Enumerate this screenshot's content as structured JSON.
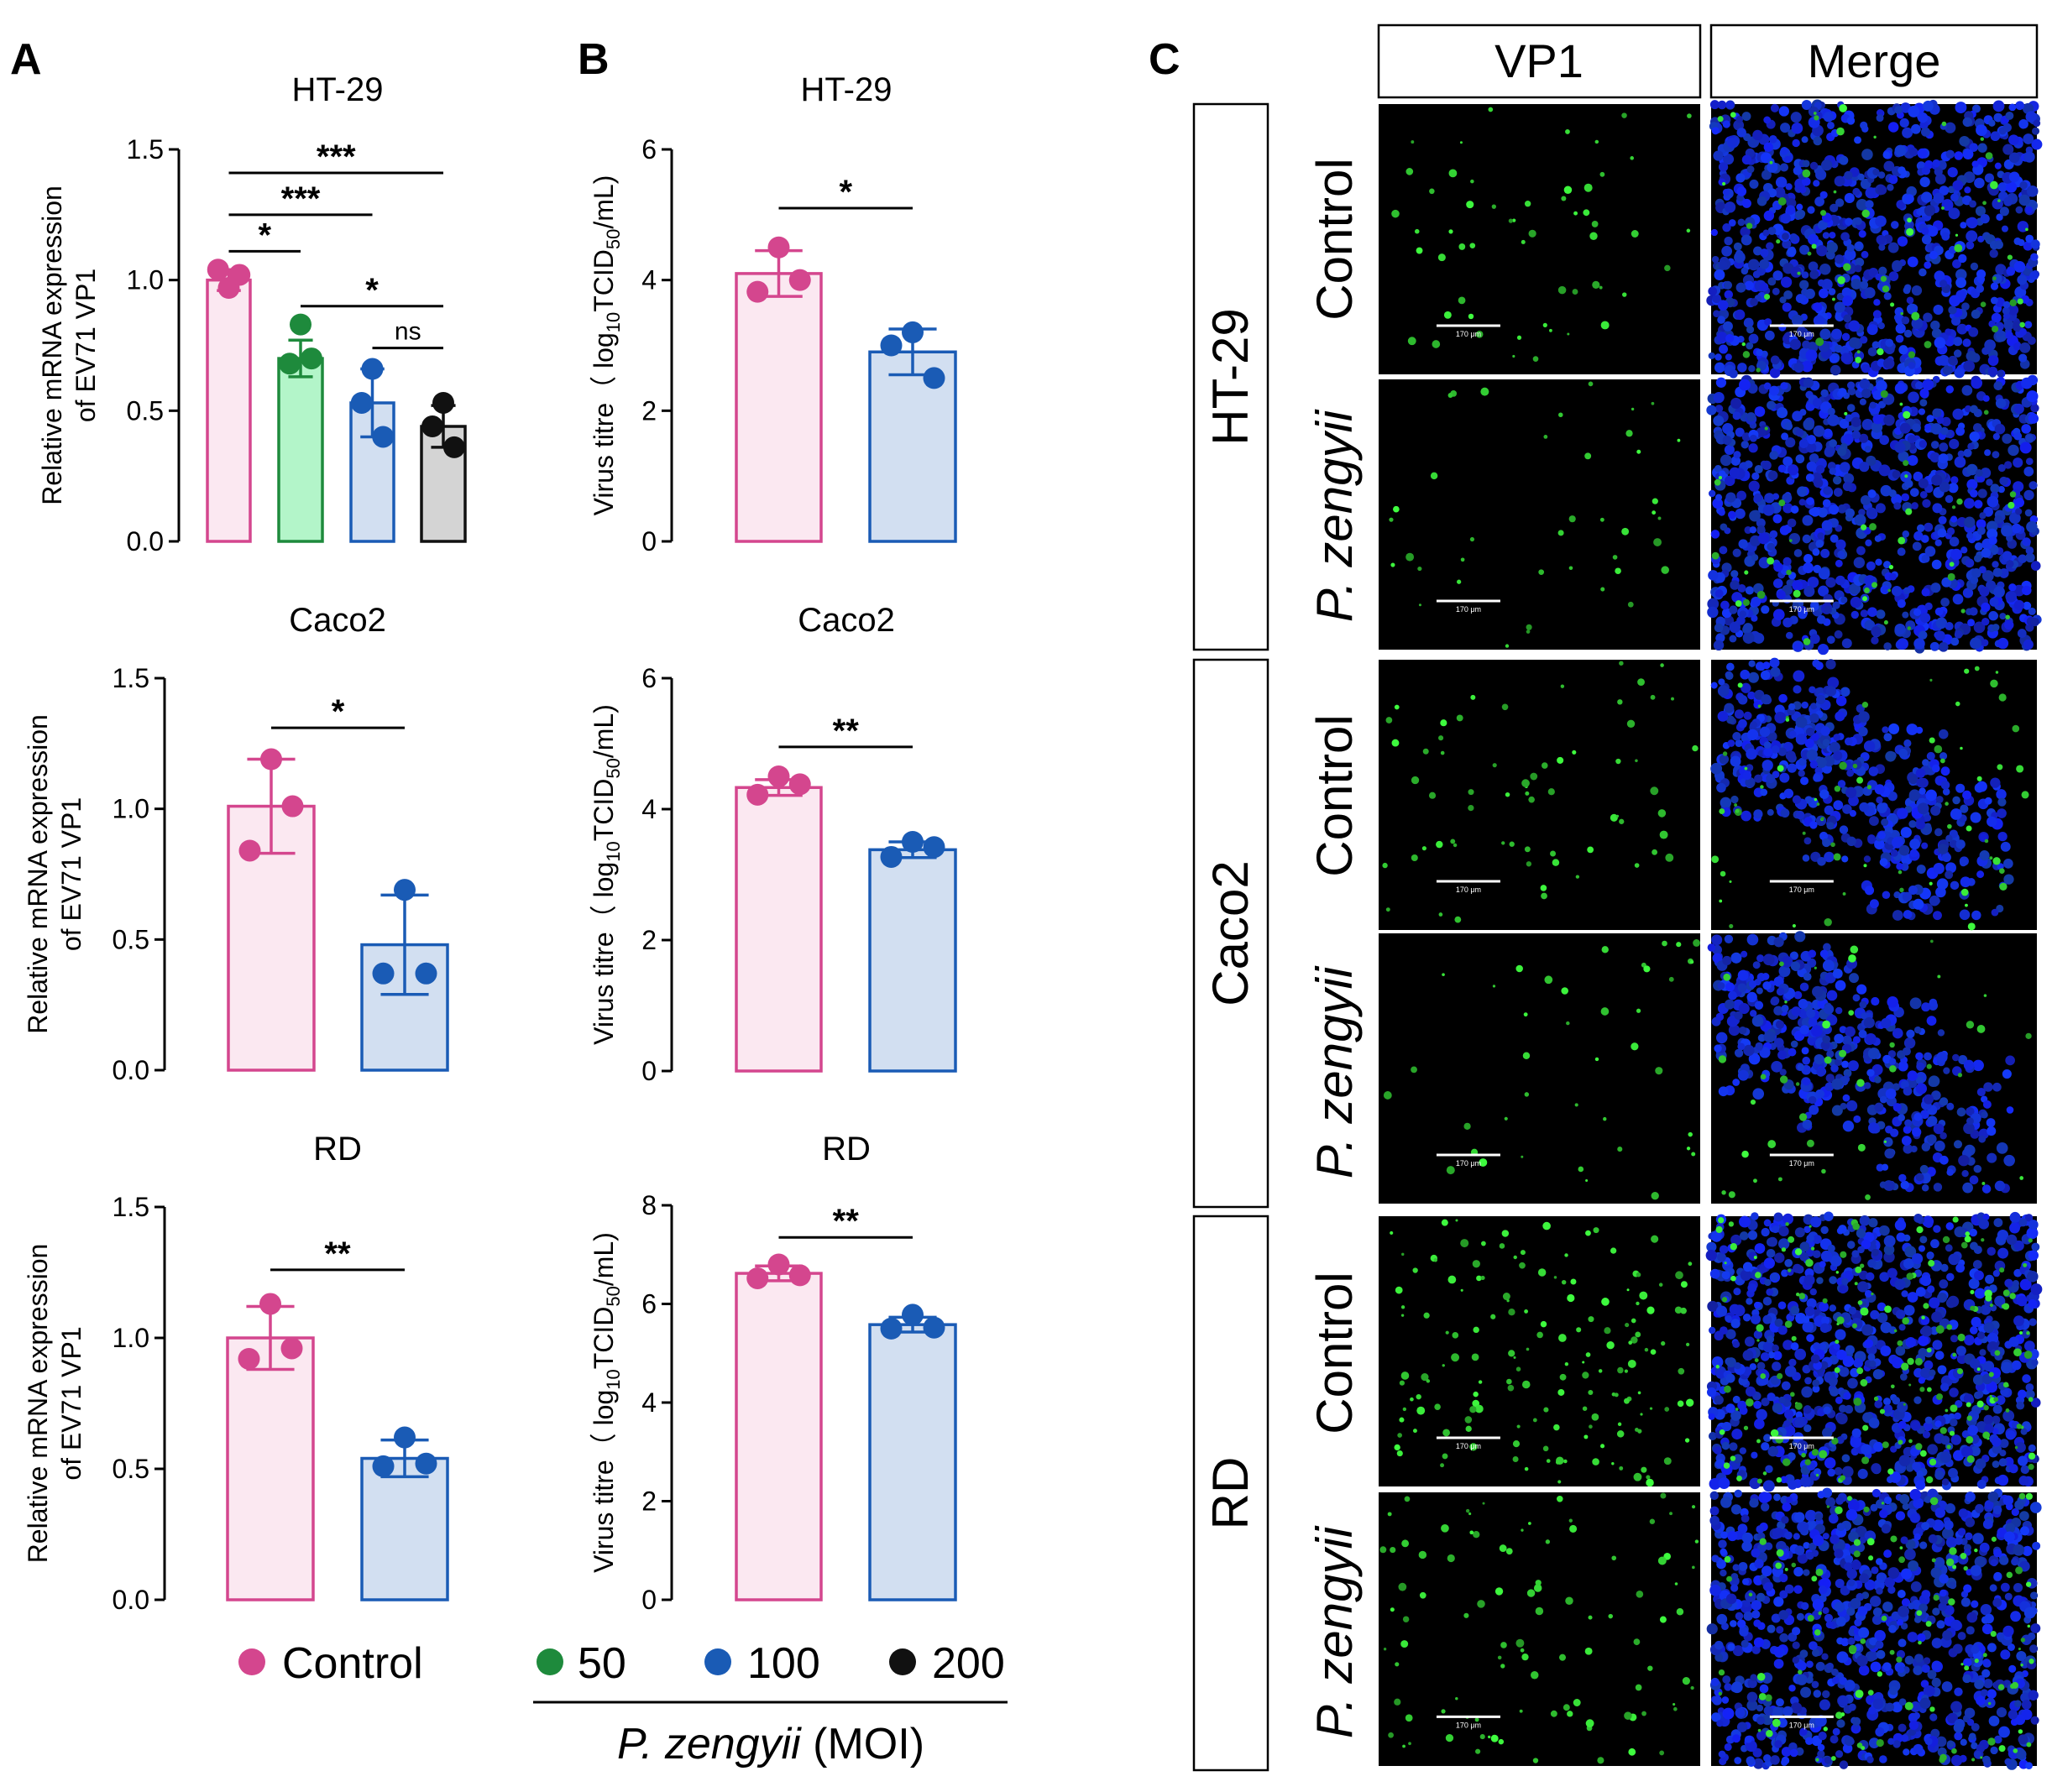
{
  "panel_letters": {
    "a": "A",
    "b": "B",
    "c": "C"
  },
  "colors": {
    "control": "#d4468e",
    "control_fill": "#fbe8f1",
    "moi50": "#1e8a3c",
    "moi50_fill": "#b3f5c9",
    "moi100": "#1a5bb5",
    "moi100_fill": "#d2dff1",
    "moi200": "#111111",
    "moi200_fill": "#d4d4d4",
    "vp1_green": "#3ee03e",
    "nuclei_blue": "#1a2fe0"
  },
  "chart_data": [
    {
      "id": "A-HT29",
      "type": "bar",
      "title": "HT-29",
      "ylabel_line1": "Relative mRNA expression",
      "ylabel_line2": "of EV71 VP1",
      "ylim": [
        0,
        1.5
      ],
      "yticks": [
        "0.0",
        "0.5",
        "1.0",
        "1.5"
      ],
      "groups": [
        {
          "key": "control",
          "mean": 1.0,
          "sd": 0.04,
          "points": [
            0.97,
            1.04,
            1.02
          ]
        },
        {
          "key": "moi50",
          "mean": 0.7,
          "sd": 0.07,
          "points": [
            0.83,
            0.68,
            0.7
          ]
        },
        {
          "key": "moi100",
          "mean": 0.53,
          "sd": 0.13,
          "points": [
            0.66,
            0.53,
            0.4
          ]
        },
        {
          "key": "moi200",
          "mean": 0.44,
          "sd": 0.08,
          "points": [
            0.53,
            0.44,
            0.36
          ]
        }
      ],
      "significance": [
        {
          "from": 0,
          "to": 3,
          "label": "***",
          "y": 1.41
        },
        {
          "from": 0,
          "to": 2,
          "label": "***",
          "y": 1.25
        },
        {
          "from": 0,
          "to": 1,
          "label": "*",
          "y": 1.11
        },
        {
          "from": 1,
          "to": 3,
          "label": "*",
          "y": 0.9
        },
        {
          "from": 2,
          "to": 3,
          "label": "ns",
          "y": 0.74
        }
      ]
    },
    {
      "id": "A-Caco2",
      "type": "bar",
      "title": "Caco2",
      "ylabel_line1": "Relative mRNA expression",
      "ylabel_line2": "of EV71 VP1",
      "ylim": [
        0,
        1.5
      ],
      "yticks": [
        "0.0",
        "0.5",
        "1.0",
        "1.5"
      ],
      "groups": [
        {
          "key": "control",
          "mean": 1.01,
          "sd": 0.18,
          "points": [
            1.19,
            0.84,
            1.01
          ]
        },
        {
          "key": "moi100",
          "mean": 0.48,
          "sd": 0.19,
          "points": [
            0.69,
            0.37,
            0.37
          ]
        }
      ],
      "significance": [
        {
          "from": 0,
          "to": 1,
          "label": "*",
          "y": 1.31
        }
      ]
    },
    {
      "id": "A-RD",
      "type": "bar",
      "title": "RD",
      "ylabel_line1": "Relative mRNA expression",
      "ylabel_line2": "of EV71 VP1",
      "ylim": [
        0,
        1.5
      ],
      "yticks": [
        "0.0",
        "0.5",
        "1.0",
        "1.5"
      ],
      "groups": [
        {
          "key": "control",
          "mean": 1.0,
          "sd": 0.12,
          "points": [
            1.13,
            0.92,
            0.96
          ]
        },
        {
          "key": "moi100",
          "mean": 0.54,
          "sd": 0.07,
          "points": [
            0.62,
            0.51,
            0.52
          ]
        }
      ],
      "significance": [
        {
          "from": 0,
          "to": 1,
          "label": "**",
          "y": 1.26
        }
      ]
    },
    {
      "id": "B-HT29",
      "type": "bar",
      "title": "HT-29",
      "ylabel_prefix": "Virus titre（ log",
      "ylabel_sub1": "10",
      "ylabel_mid": "TCID",
      "ylabel_sub2": "50",
      "ylabel_suffix": "/mL)",
      "ylim": [
        0,
        6
      ],
      "yticks": [
        "0",
        "2",
        "4",
        "6"
      ],
      "groups": [
        {
          "key": "control",
          "mean": 4.1,
          "sd": 0.35,
          "points": [
            4.5,
            3.82,
            4.0
          ]
        },
        {
          "key": "moi100",
          "mean": 2.9,
          "sd": 0.35,
          "points": [
            3.2,
            3.0,
            2.5
          ]
        }
      ],
      "significance": [
        {
          "from": 0,
          "to": 1,
          "label": "*",
          "y": 5.1
        }
      ]
    },
    {
      "id": "B-Caco2",
      "type": "bar",
      "title": "Caco2",
      "ylabel_prefix": "Virus titre（ log",
      "ylabel_sub1": "10",
      "ylabel_mid": "TCID",
      "ylabel_sub2": "50",
      "ylabel_suffix": "/mL)",
      "ylim": [
        0,
        6
      ],
      "yticks": [
        "0",
        "2",
        "4",
        "6"
      ],
      "groups": [
        {
          "key": "control",
          "mean": 4.33,
          "sd": 0.12,
          "points": [
            4.5,
            4.22,
            4.38
          ]
        },
        {
          "key": "moi100",
          "mean": 3.38,
          "sd": 0.12,
          "points": [
            3.5,
            3.27,
            3.42
          ]
        }
      ],
      "significance": [
        {
          "from": 0,
          "to": 1,
          "label": "**",
          "y": 4.95
        }
      ]
    },
    {
      "id": "B-RD",
      "type": "bar",
      "title": "RD",
      "ylabel_prefix": "Virus titre（ log",
      "ylabel_sub1": "10",
      "ylabel_mid": "TCID",
      "ylabel_sub2": "50",
      "ylabel_suffix": "/mL)",
      "ylim": [
        0,
        8
      ],
      "yticks": [
        "0",
        "2",
        "4",
        "6",
        "8"
      ],
      "groups": [
        {
          "key": "control",
          "mean": 6.62,
          "sd": 0.15,
          "points": [
            6.8,
            6.52,
            6.58
          ]
        },
        {
          "key": "moi100",
          "mean": 5.58,
          "sd": 0.15,
          "points": [
            5.78,
            5.5,
            5.52
          ]
        }
      ],
      "significance": [
        {
          "from": 0,
          "to": 1,
          "label": "**",
          "y": 7.35
        }
      ]
    }
  ],
  "legend": {
    "items": [
      {
        "key": "control",
        "label": "Control"
      },
      {
        "key": "moi50",
        "label": "50"
      },
      {
        "key": "moi100",
        "label": "100"
      },
      {
        "key": "moi200",
        "label": "200"
      }
    ],
    "group_label_italic": "P. zengyii",
    "group_label_rest": " (MOI)"
  },
  "panel_c": {
    "col_headers": [
      "VP1",
      "Merge"
    ],
    "cell_lines": [
      "HT-29",
      "Caco2",
      "RD"
    ],
    "conditions": [
      {
        "label": "Control",
        "italic": false
      },
      {
        "label": "P. zengyii",
        "italic": true
      }
    ],
    "scale_bar_label": "170 μm",
    "image_density": [
      {
        "vp1": 0.35,
        "merge_nuclei": 1.0
      },
      {
        "vp1": 0.25,
        "merge_nuclei": 1.0
      },
      {
        "vp1": 0.4,
        "merge_nuclei": 0.6
      },
      {
        "vp1": 0.25,
        "merge_nuclei": 0.55
      },
      {
        "vp1": 1.0,
        "merge_nuclei": 1.0
      },
      {
        "vp1": 0.6,
        "merge_nuclei": 1.0
      }
    ]
  }
}
